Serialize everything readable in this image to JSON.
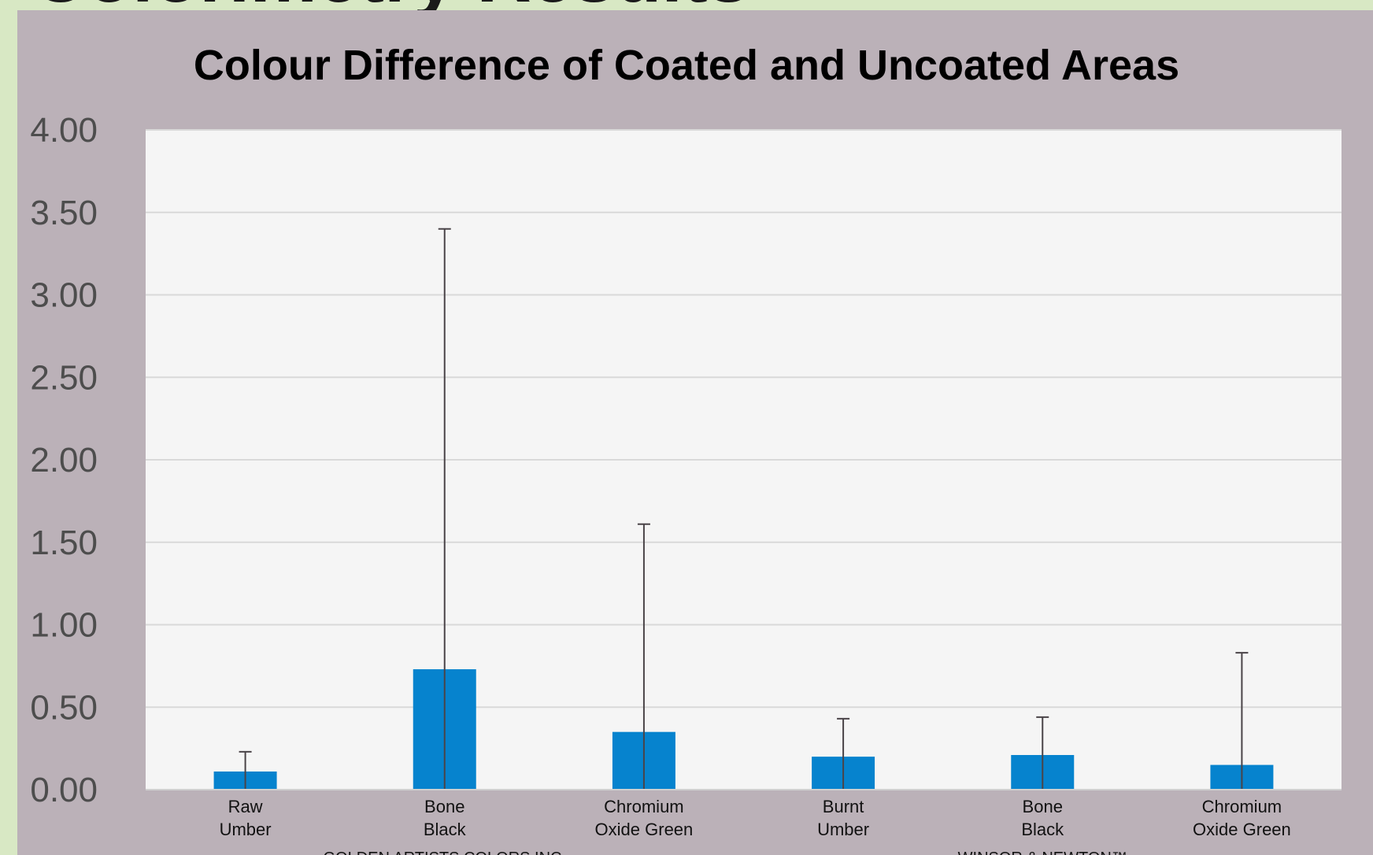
{
  "slide": {
    "heading": "Colorimetry Results"
  },
  "chart_data": {
    "type": "bar",
    "title": "Colour Difference of Coated and Uncoated Areas",
    "xlabel": "",
    "ylabel": "",
    "ylim": [
      0,
      4
    ],
    "yticks": [
      "0.00",
      "0.50",
      "1.00",
      "1.50",
      "2.00",
      "2.50",
      "3.00",
      "3.50",
      "4.00"
    ],
    "grid": true,
    "categories": [
      [
        "Raw",
        "Umber"
      ],
      [
        "Bone",
        "Black"
      ],
      [
        "Chromium",
        "Oxide Green"
      ],
      [
        "Burnt",
        "Umber"
      ],
      [
        "Bone",
        "Black"
      ],
      [
        "Chromium",
        "Oxide Green"
      ]
    ],
    "groups": [
      {
        "label": "GOLDEN ARTISTS COLORS INC.",
        "span": [
          0,
          2
        ]
      },
      {
        "label": "WINSOR & NEWTON™",
        "span": [
          3,
          5
        ]
      }
    ],
    "values": [
      0.11,
      0.73,
      0.35,
      0.2,
      0.21,
      0.15
    ],
    "error_upper": [
      0.23,
      3.4,
      1.61,
      0.43,
      0.44,
      0.83
    ],
    "colors": {
      "bar": "#0683ce",
      "error_bar": "#4a4448",
      "plot_bg": "#f5f5f5",
      "gridline": "#d9d9d9",
      "panel_bg": "#bbb1b8"
    }
  }
}
